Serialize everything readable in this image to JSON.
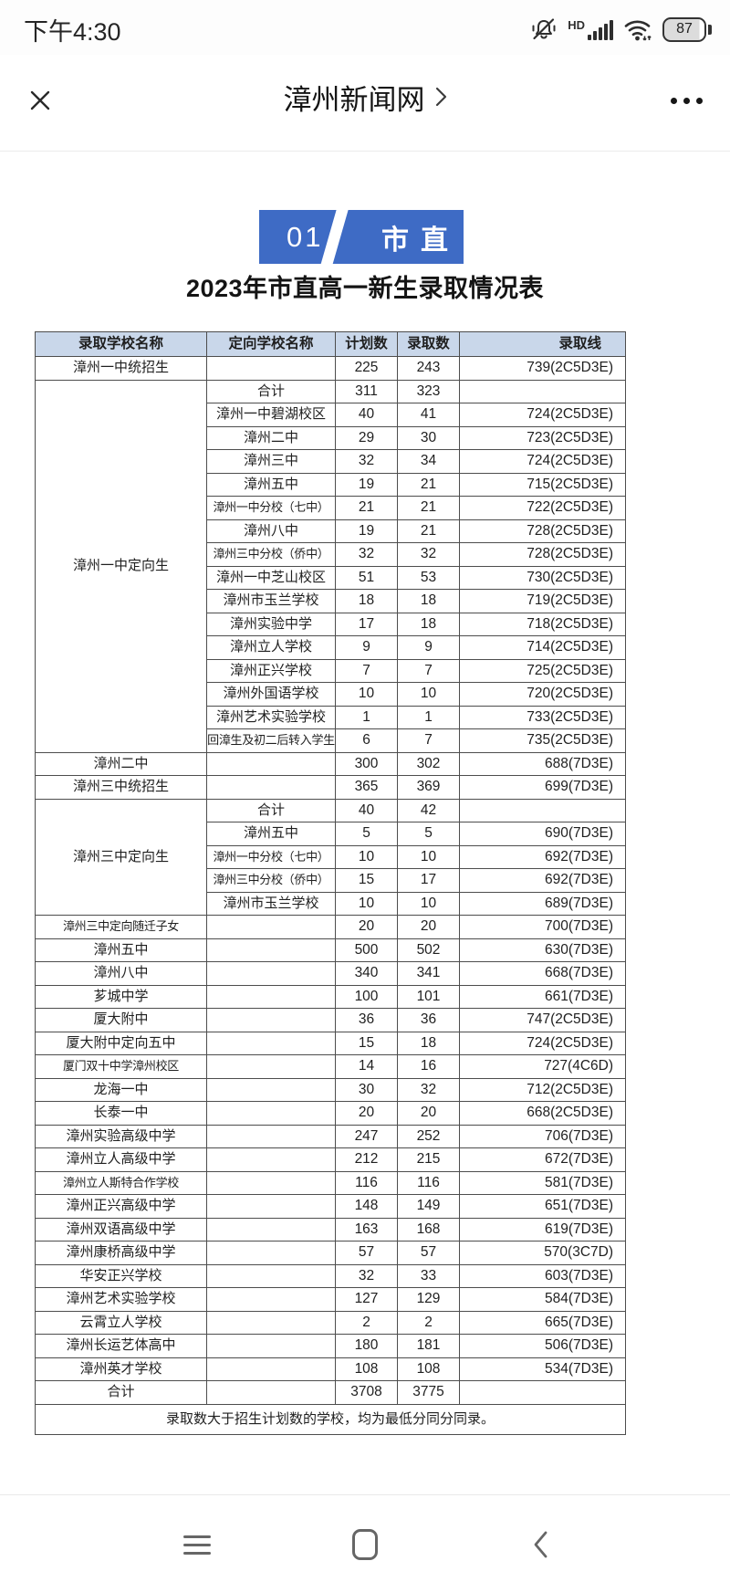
{
  "status_bar": {
    "time": "下午4:30",
    "battery": "87",
    "network": "HD"
  },
  "nav_header": {
    "title": "漳州新闻网"
  },
  "section_badge": {
    "number": "01",
    "label": "市直"
  },
  "article": {
    "table_title": "2023年市直高一新生录取情况表"
  },
  "table": {
    "columns": [
      "录取学校名称",
      "定向学校名称",
      "计划数",
      "录取数",
      "录取线"
    ],
    "rows": [
      {
        "school": "漳州一中统招生",
        "span": 1,
        "target": "",
        "plan": "225",
        "admitted": "243",
        "cutoff": "739(2C5D3E)"
      },
      {
        "school": "漳州一中定向生",
        "span": 16,
        "target": "合计",
        "plan": "311",
        "admitted": "323",
        "cutoff": ""
      },
      {
        "target": "漳州一中碧湖校区",
        "plan": "40",
        "admitted": "41",
        "cutoff": "724(2C5D3E)"
      },
      {
        "target": "漳州二中",
        "plan": "29",
        "admitted": "30",
        "cutoff": "723(2C5D3E)"
      },
      {
        "target": "漳州三中",
        "plan": "32",
        "admitted": "34",
        "cutoff": "724(2C5D3E)"
      },
      {
        "target": "漳州五中",
        "plan": "19",
        "admitted": "21",
        "cutoff": "715(2C5D3E)"
      },
      {
        "target": "漳州一中分校（七中）",
        "plan": "21",
        "admitted": "21",
        "cutoff": "722(2C5D3E)"
      },
      {
        "target": "漳州八中",
        "plan": "19",
        "admitted": "21",
        "cutoff": "728(2C5D3E)"
      },
      {
        "target": "漳州三中分校（侨中）",
        "plan": "32",
        "admitted": "32",
        "cutoff": "728(2C5D3E)"
      },
      {
        "target": "漳州一中芝山校区",
        "plan": "51",
        "admitted": "53",
        "cutoff": "730(2C5D3E)"
      },
      {
        "target": "漳州市玉兰学校",
        "plan": "18",
        "admitted": "18",
        "cutoff": "719(2C5D3E)"
      },
      {
        "target": "漳州实验中学",
        "plan": "17",
        "admitted": "18",
        "cutoff": "718(2C5D3E)"
      },
      {
        "target": "漳州立人学校",
        "plan": "9",
        "admitted": "9",
        "cutoff": "714(2C5D3E)"
      },
      {
        "target": "漳州正兴学校",
        "plan": "7",
        "admitted": "7",
        "cutoff": "725(2C5D3E)"
      },
      {
        "target": "漳州外国语学校",
        "plan": "10",
        "admitted": "10",
        "cutoff": "720(2C5D3E)"
      },
      {
        "target": "漳州艺术实验学校",
        "plan": "1",
        "admitted": "1",
        "cutoff": "733(2C5D3E)"
      },
      {
        "target": "回漳生及初二后转入学生",
        "plan": "6",
        "admitted": "7",
        "cutoff": "735(2C5D3E)"
      },
      {
        "school": "漳州二中",
        "span": 1,
        "target": "",
        "plan": "300",
        "admitted": "302",
        "cutoff": "688(7D3E)"
      },
      {
        "school": "漳州三中统招生",
        "span": 1,
        "target": "",
        "plan": "365",
        "admitted": "369",
        "cutoff": "699(7D3E)"
      },
      {
        "school": "漳州三中定向生",
        "span": 5,
        "target": "合计",
        "plan": "40",
        "admitted": "42",
        "cutoff": ""
      },
      {
        "target": "漳州五中",
        "plan": "5",
        "admitted": "5",
        "cutoff": "690(7D3E)"
      },
      {
        "target": "漳州一中分校（七中）",
        "plan": "10",
        "admitted": "10",
        "cutoff": "692(7D3E)"
      },
      {
        "target": "漳州三中分校（侨中）",
        "plan": "15",
        "admitted": "17",
        "cutoff": "692(7D3E)"
      },
      {
        "target": "漳州市玉兰学校",
        "plan": "10",
        "admitted": "10",
        "cutoff": "689(7D3E)"
      },
      {
        "school": "漳州三中定向随迁子女",
        "span": 1,
        "target": "",
        "plan": "20",
        "admitted": "20",
        "cutoff": "700(7D3E)"
      },
      {
        "school": "漳州五中",
        "span": 1,
        "target": "",
        "plan": "500",
        "admitted": "502",
        "cutoff": "630(7D3E)"
      },
      {
        "school": "漳州八中",
        "span": 1,
        "target": "",
        "plan": "340",
        "admitted": "341",
        "cutoff": "668(7D3E)"
      },
      {
        "school": "芗城中学",
        "span": 1,
        "target": "",
        "plan": "100",
        "admitted": "101",
        "cutoff": "661(7D3E)"
      },
      {
        "school": "厦大附中",
        "span": 1,
        "target": "",
        "plan": "36",
        "admitted": "36",
        "cutoff": "747(2C5D3E)"
      },
      {
        "school": "厦大附中定向五中",
        "span": 1,
        "target": "",
        "plan": "15",
        "admitted": "18",
        "cutoff": "724(2C5D3E)"
      },
      {
        "school": "厦门双十中学漳州校区",
        "span": 1,
        "target": "",
        "plan": "14",
        "admitted": "16",
        "cutoff": "727(4C6D)"
      },
      {
        "school": "龙海一中",
        "span": 1,
        "target": "",
        "plan": "30",
        "admitted": "32",
        "cutoff": "712(2C5D3E)"
      },
      {
        "school": "长泰一中",
        "span": 1,
        "target": "",
        "plan": "20",
        "admitted": "20",
        "cutoff": "668(2C5D3E)"
      },
      {
        "school": "漳州实验高级中学",
        "span": 1,
        "target": "",
        "plan": "247",
        "admitted": "252",
        "cutoff": "706(7D3E)"
      },
      {
        "school": "漳州立人高级中学",
        "span": 1,
        "target": "",
        "plan": "212",
        "admitted": "215",
        "cutoff": "672(7D3E)"
      },
      {
        "school": "漳州立人斯特合作学校",
        "span": 1,
        "target": "",
        "plan": "116",
        "admitted": "116",
        "cutoff": "581(7D3E)"
      },
      {
        "school": "漳州正兴高级中学",
        "span": 1,
        "target": "",
        "plan": "148",
        "admitted": "149",
        "cutoff": "651(7D3E)"
      },
      {
        "school": "漳州双语高级中学",
        "span": 1,
        "target": "",
        "plan": "163",
        "admitted": "168",
        "cutoff": "619(7D3E)"
      },
      {
        "school": "漳州康桥高级中学",
        "span": 1,
        "target": "",
        "plan": "57",
        "admitted": "57",
        "cutoff": "570(3C7D)"
      },
      {
        "school": "华安正兴学校",
        "span": 1,
        "target": "",
        "plan": "32",
        "admitted": "33",
        "cutoff": "603(7D3E)"
      },
      {
        "school": "漳州艺术实验学校",
        "span": 1,
        "target": "",
        "plan": "127",
        "admitted": "129",
        "cutoff": "584(7D3E)"
      },
      {
        "school": "云霄立人学校",
        "span": 1,
        "target": "",
        "plan": "2",
        "admitted": "2",
        "cutoff": "665(7D3E)"
      },
      {
        "school": "漳州长运艺体高中",
        "span": 1,
        "target": "",
        "plan": "180",
        "admitted": "181",
        "cutoff": "506(7D3E)"
      },
      {
        "school": "漳州英才学校",
        "span": 1,
        "target": "",
        "plan": "108",
        "admitted": "108",
        "cutoff": "534(7D3E)"
      },
      {
        "school": "合计",
        "span": 1,
        "target": "",
        "plan": "3708",
        "admitted": "3775",
        "cutoff": ""
      }
    ],
    "note": "录取数大于招生计划数的学校，均为最低分同分同录。"
  },
  "bottom_nav": {
    "items": [
      "recents",
      "home",
      "back"
    ]
  },
  "colors": {
    "badge_blue": "#3e6bc5",
    "table_header_bg": "#c9d7ea"
  },
  "icons": {
    "status": [
      "mute-icon",
      "hd-icon",
      "signal-icon",
      "wifi-icon",
      "battery-icon"
    ],
    "header": [
      "close-icon",
      "chevron-right-icon",
      "more-icon"
    ],
    "nav": [
      "recents-icon",
      "home-icon",
      "back-icon"
    ]
  }
}
